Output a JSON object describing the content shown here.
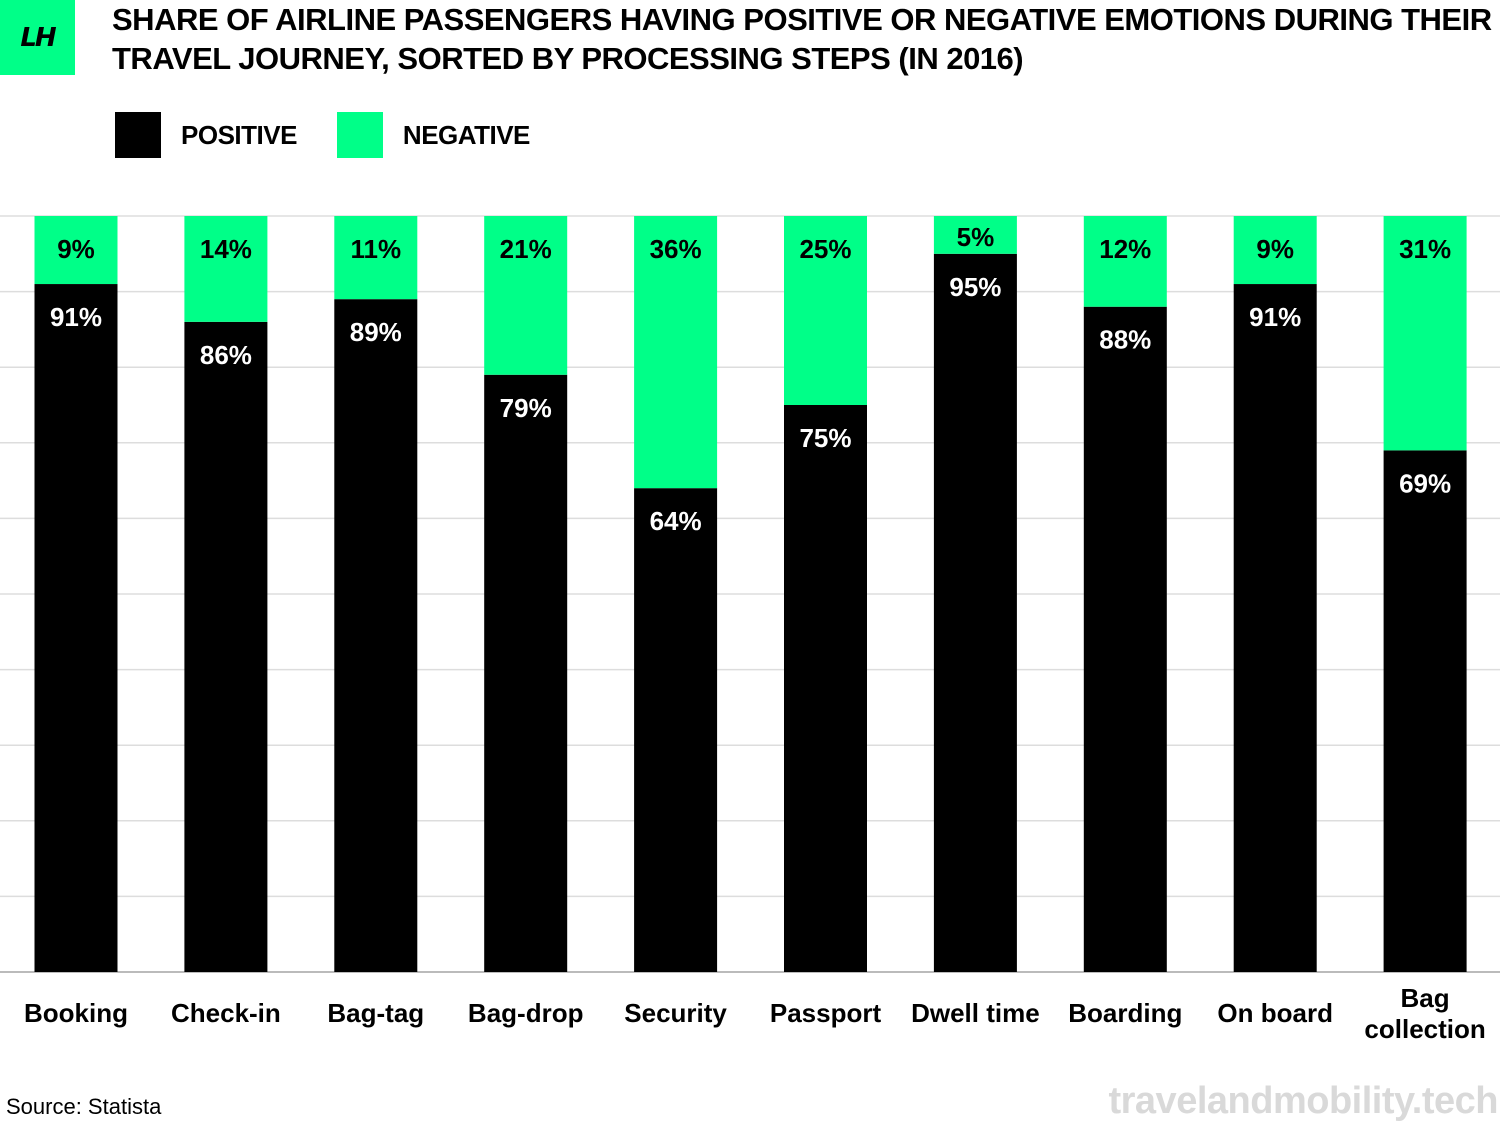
{
  "brand": {
    "logo_text": "LH",
    "logo_color": "#00ff88",
    "watermark": "travelandmobility.tech"
  },
  "title": "SHARE OF AIRLINE PASSENGERS HAVING POSITIVE OR NEGATIVE EMOTIONS DURING THEIR TRAVEL JOURNEY, SORTED BY PROCESSING STEPS (IN 2016)",
  "legend": [
    {
      "label": "POSITIVE",
      "color": "#000000"
    },
    {
      "label": "NEGATIVE",
      "color": "#00ff88"
    }
  ],
  "source": "Source: Statista",
  "chart_data": {
    "type": "bar",
    "stacked": true,
    "title": "SHARE OF AIRLINE PASSENGERS HAVING POSITIVE OR NEGATIVE EMOTIONS DURING THEIR TRAVEL JOURNEY, SORTED BY PROCESSING STEPS (IN 2016)",
    "categories": [
      "Booking",
      "Check-in",
      "Bag-tag",
      "Bag-drop",
      "Security",
      "Passport",
      "Dwell time",
      "Boarding",
      "On board",
      "Bag collection"
    ],
    "series": [
      {
        "name": "POSITIVE",
        "color": "#000000",
        "values": [
          91,
          86,
          89,
          79,
          64,
          75,
          95,
          88,
          91,
          69
        ],
        "labels": [
          "91%",
          "86%",
          "89%",
          "79%",
          "64%",
          "75%",
          "95%",
          "88%",
          "91%",
          "69%"
        ]
      },
      {
        "name": "NEGATIVE",
        "color": "#00ff88",
        "values": [
          9,
          14,
          11,
          21,
          36,
          25,
          5,
          12,
          9,
          31
        ],
        "labels": [
          "9%",
          "14%",
          "11%",
          "21%",
          "36%",
          "25%",
          "5%",
          "12%",
          "9%",
          "31%"
        ]
      }
    ],
    "ylim": [
      0,
      100
    ],
    "grid": true,
    "legend_position": "top-left",
    "xlabel": "",
    "ylabel": ""
  }
}
